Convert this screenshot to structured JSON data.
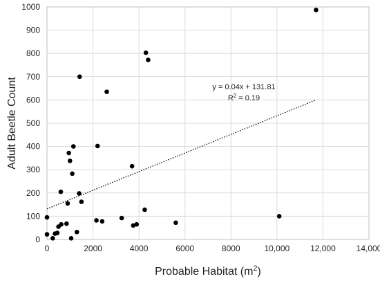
{
  "chart_data": {
    "type": "scatter",
    "xlabel_main": "Probable Habitat (m",
    "xlabel_sup": "2",
    "xlabel_tail": ")",
    "ylabel": "Adult Beetle Count",
    "xlim": [
      0,
      14000
    ],
    "ylim": [
      0,
      1000
    ],
    "x_ticks": [
      0,
      2000,
      4000,
      6000,
      8000,
      10000,
      12000,
      14000
    ],
    "x_tick_labels": [
      "0",
      "2000",
      "4000",
      "6000",
      "8000",
      "10,000",
      "12,000",
      "14,000"
    ],
    "y_ticks": [
      0,
      100,
      200,
      300,
      400,
      500,
      600,
      700,
      800,
      900,
      1000
    ],
    "y_tick_labels": [
      "0",
      "100",
      "200",
      "300",
      "400",
      "500",
      "600",
      "700",
      "800",
      "900",
      "1000"
    ],
    "grid": true,
    "trendline": {
      "slope": 0.04,
      "intercept": 131.81,
      "x_range": [
        0,
        11700
      ],
      "equation": "y = 0.04x + 131.81",
      "r2_main": "R",
      "r2_sup": "2",
      "r2_tail": " = 0.19"
    },
    "points": [
      {
        "x": 0,
        "y": 95
      },
      {
        "x": 0,
        "y": 22
      },
      {
        "x": 250,
        "y": 5
      },
      {
        "x": 350,
        "y": 25
      },
      {
        "x": 450,
        "y": 28
      },
      {
        "x": 500,
        "y": 55
      },
      {
        "x": 620,
        "y": 65
      },
      {
        "x": 600,
        "y": 205
      },
      {
        "x": 850,
        "y": 68
      },
      {
        "x": 900,
        "y": 155
      },
      {
        "x": 950,
        "y": 372
      },
      {
        "x": 1000,
        "y": 338
      },
      {
        "x": 1050,
        "y": 5
      },
      {
        "x": 1100,
        "y": 283
      },
      {
        "x": 1150,
        "y": 400
      },
      {
        "x": 1300,
        "y": 32
      },
      {
        "x": 1400,
        "y": 198
      },
      {
        "x": 1420,
        "y": 700
      },
      {
        "x": 1500,
        "y": 162
      },
      {
        "x": 2150,
        "y": 82
      },
      {
        "x": 2200,
        "y": 402
      },
      {
        "x": 2400,
        "y": 78
      },
      {
        "x": 2600,
        "y": 635
      },
      {
        "x": 3250,
        "y": 92
      },
      {
        "x": 3700,
        "y": 315
      },
      {
        "x": 3750,
        "y": 60
      },
      {
        "x": 3900,
        "y": 65
      },
      {
        "x": 4250,
        "y": 128
      },
      {
        "x": 4300,
        "y": 803
      },
      {
        "x": 4400,
        "y": 772
      },
      {
        "x": 5600,
        "y": 72
      },
      {
        "x": 10100,
        "y": 100
      },
      {
        "x": 11700,
        "y": 987
      }
    ]
  }
}
